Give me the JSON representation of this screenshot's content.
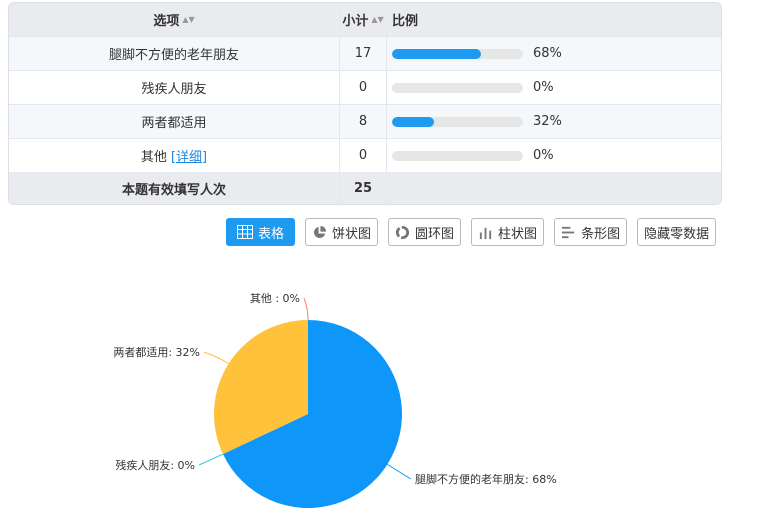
{
  "table": {
    "headers": {
      "option": "选项",
      "count": "小计",
      "ratio": "比例"
    },
    "rows": [
      {
        "option": "腿脚不方便的老年朋友",
        "count": "17",
        "percent": "68%",
        "ratio": 0.68
      },
      {
        "option": "残疾人朋友",
        "count": "0",
        "percent": "0%",
        "ratio": 0
      },
      {
        "option": "两者都适用",
        "count": "8",
        "percent": "32%",
        "ratio": 0.32
      },
      {
        "option": "其他",
        "detail_link": "[详细]",
        "count": "0",
        "percent": "0%",
        "ratio": 0
      }
    ],
    "total": {
      "label": "本题有效填写人次",
      "count": "25"
    }
  },
  "toolbar": {
    "table": "表格",
    "pie": "饼状图",
    "donut": "圆环图",
    "column": "柱状图",
    "bar": "条形图",
    "hide_zero": "隐藏零数据"
  },
  "colors": {
    "accent": "#1e9af0",
    "slice_main": "#0e96f8",
    "slice_second": "#ffc23a",
    "slice_third": "#35c2d8",
    "slice_fourth": "#ff7a5a"
  },
  "chart_data": {
    "type": "pie",
    "slices": [
      {
        "label": "腿脚不方便的老年朋友: 68%",
        "value": 68,
        "color": "#0e96f8"
      },
      {
        "label": "残疾人朋友: 0%",
        "value": 0,
        "color": "#35c2d8"
      },
      {
        "label": "两者都适用: 32%",
        "value": 32,
        "color": "#ffc23a"
      },
      {
        "label": "其他 : 0%",
        "value": 0,
        "color": "#ff7a5a"
      }
    ]
  }
}
